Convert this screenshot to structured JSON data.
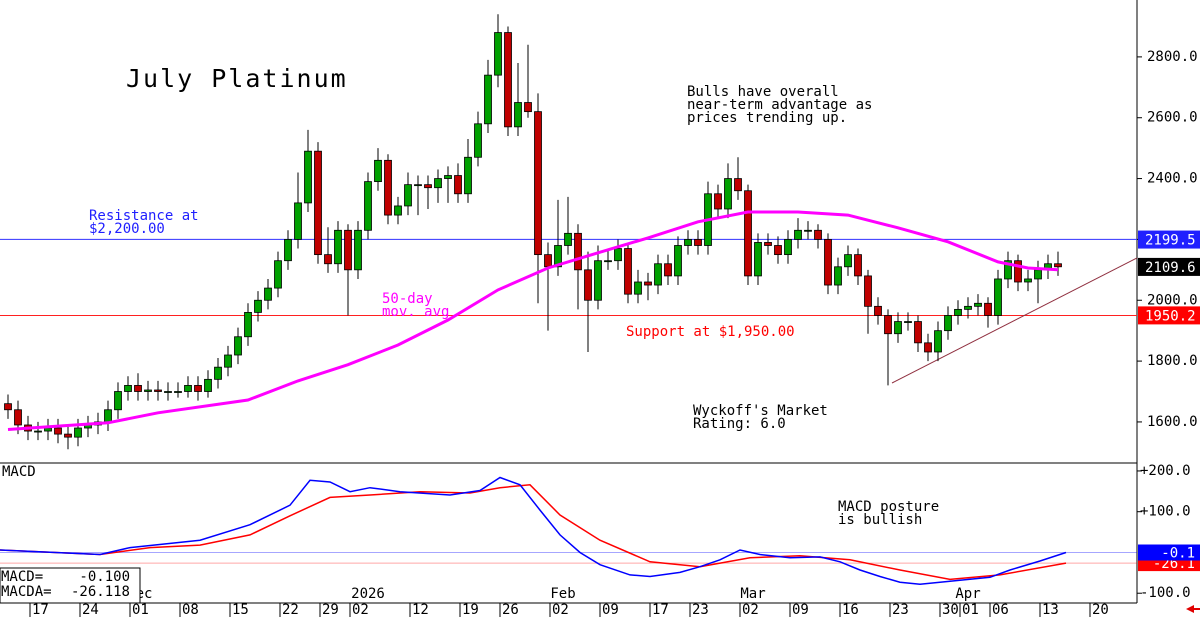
{
  "chart_data": {
    "type": "candlestick",
    "title": "July Platinum",
    "xlim": [
      -0.8,
      112.9
    ],
    "ylim": [
      1465,
      2987
    ],
    "yticks": [
      {
        "value": 1600,
        "label": "1600.0"
      },
      {
        "value": 1800,
        "label": "1800.0"
      },
      {
        "value": 2000,
        "label": "2000.0"
      },
      {
        "value": 2200,
        "label": "2200.0"
      },
      {
        "value": 2400,
        "label": "2400.0"
      },
      {
        "value": 2600,
        "label": "2600.0"
      },
      {
        "value": 2800,
        "label": "2800.0"
      }
    ],
    "xticks": [
      {
        "value": 3,
        "label": "17"
      },
      {
        "value": 8,
        "label": "24"
      },
      {
        "value": 13,
        "label": "01"
      },
      {
        "value": 18,
        "label": "08"
      },
      {
        "value": 23,
        "label": "15"
      },
      {
        "value": 28,
        "label": "22"
      },
      {
        "value": 32,
        "label": "29"
      },
      {
        "value": 35,
        "label": "02"
      },
      {
        "value": 41,
        "label": "12"
      },
      {
        "value": 46,
        "label": "19"
      },
      {
        "value": 50,
        "label": "26"
      },
      {
        "value": 55,
        "label": "02"
      },
      {
        "value": 60,
        "label": "09"
      },
      {
        "value": 65,
        "label": "17"
      },
      {
        "value": 69,
        "label": "23"
      },
      {
        "value": 74,
        "label": "02"
      },
      {
        "value": 79,
        "label": "09"
      },
      {
        "value": 84,
        "label": "16"
      },
      {
        "value": 89,
        "label": "23"
      },
      {
        "value": 94,
        "label": "30"
      },
      {
        "value": 96,
        "label": "01"
      },
      {
        "value": 99,
        "label": "06"
      },
      {
        "value": 104,
        "label": "13"
      },
      {
        "value": 109,
        "label": "20"
      }
    ],
    "month_labels": [
      {
        "value": 13.6,
        "label": "ec"
      },
      {
        "value": 36,
        "label": "2026"
      },
      {
        "value": 55.5,
        "label": "Feb"
      },
      {
        "value": 74.5,
        "label": "Mar"
      },
      {
        "value": 96,
        "label": "Apr"
      }
    ],
    "up_color": "#00a000",
    "down_color": "#c00000",
    "open": [
      1660,
      1640,
      1590,
      1570,
      1570,
      1580,
      1560,
      1550,
      1580,
      1590,
      1600,
      1640,
      1700,
      1720,
      1700,
      1705,
      1700,
      1700,
      1700,
      1720,
      1700,
      1740,
      1780,
      1820,
      1880,
      1960,
      2000,
      2040,
      2130,
      2200,
      2320,
      2490,
      2150,
      2120,
      2230,
      2100,
      2230,
      2390,
      2460,
      2280,
      2310,
      2380,
      2380,
      2370,
      2400,
      2410,
      2350,
      2470,
      2580,
      2740,
      2880,
      2570,
      2650,
      2620,
      2150,
      2110,
      2180,
      2220,
      2100,
      2000,
      2130,
      2130,
      2170,
      2020,
      2060,
      2050,
      2120,
      2080,
      2180,
      2200,
      2180,
      2350,
      2300,
      2400,
      2360,
      2080,
      2190,
      2180,
      2150,
      2200,
      2230,
      2230,
      2200,
      2050,
      2110,
      2150,
      2080,
      1980,
      1950,
      1890,
      1930,
      1930,
      1860,
      1830,
      1900,
      1950,
      1970,
      1980,
      1990,
      1950,
      2070,
      2130,
      2060,
      2070,
      2100,
      2120
    ],
    "high": [
      1690,
      1670,
      1620,
      1600,
      1610,
      1610,
      1590,
      1610,
      1620,
      1630,
      1670,
      1730,
      1750,
      1760,
      1735,
      1735,
      1730,
      1730,
      1750,
      1750,
      1770,
      1810,
      1850,
      1910,
      1990,
      2030,
      2070,
      2160,
      2230,
      2420,
      2560,
      2520,
      2240,
      2260,
      2250,
      2260,
      2420,
      2500,
      2480,
      2340,
      2420,
      2410,
      2410,
      2430,
      2440,
      2450,
      2530,
      2620,
      2790,
      2940,
      2900,
      2780,
      2840,
      2680,
      2190,
      2330,
      2340,
      2250,
      2160,
      2180,
      2170,
      2200,
      2190,
      2100,
      2090,
      2150,
      2150,
      2210,
      2230,
      2230,
      2390,
      2380,
      2450,
      2470,
      2380,
      2220,
      2220,
      2210,
      2230,
      2270,
      2260,
      2250,
      2220,
      2140,
      2180,
      2170,
      2100,
      2010,
      1970,
      1960,
      1960,
      1950,
      1890,
      1930,
      1980,
      2000,
      2010,
      2020,
      2010,
      2100,
      2160,
      2150,
      2100,
      2130,
      2150,
      2160
    ],
    "low": [
      1610,
      1560,
      1540,
      1540,
      1540,
      1530,
      1510,
      1520,
      1550,
      1560,
      1570,
      1610,
      1670,
      1670,
      1670,
      1670,
      1670,
      1680,
      1680,
      1670,
      1680,
      1710,
      1750,
      1790,
      1850,
      1930,
      1970,
      2010,
      2100,
      2170,
      2290,
      2120,
      2090,
      2090,
      1950,
      2070,
      2200,
      2360,
      2250,
      2250,
      2280,
      2280,
      2300,
      2320,
      2320,
      2320,
      2320,
      2440,
      2550,
      2700,
      2540,
      2540,
      2600,
      1990,
      1900,
      2080,
      2150,
      1970,
      1830,
      1970,
      2100,
      2100,
      1990,
      1990,
      2000,
      2020,
      2050,
      2050,
      2150,
      2150,
      2150,
      2270,
      2270,
      2330,
      2050,
      2050,
      2150,
      2120,
      2120,
      2170,
      2200,
      2170,
      2020,
      2020,
      2080,
      2050,
      1890,
      1920,
      1720,
      1860,
      1900,
      1830,
      1800,
      1800,
      1870,
      1920,
      1940,
      1950,
      1910,
      1920,
      2040,
      2030,
      2030,
      1990,
      2070,
      2080
    ],
    "close": [
      1640,
      1590,
      1570,
      1570,
      1580,
      1560,
      1550,
      1580,
      1590,
      1600,
      1640,
      1700,
      1720,
      1700,
      1705,
      1700,
      1700,
      1700,
      1720,
      1700,
      1740,
      1780,
      1820,
      1880,
      1960,
      2000,
      2040,
      2130,
      2200,
      2320,
      2490,
      2150,
      2120,
      2230,
      2100,
      2230,
      2390,
      2460,
      2280,
      2310,
      2380,
      2380,
      2370,
      2400,
      2410,
      2350,
      2470,
      2580,
      2740,
      2880,
      2570,
      2650,
      2620,
      2150,
      2110,
      2180,
      2220,
      2100,
      2000,
      2130,
      2130,
      2170,
      2020,
      2060,
      2050,
      2120,
      2080,
      2180,
      2200,
      2180,
      2350,
      2300,
      2400,
      2360,
      2080,
      2190,
      2180,
      2150,
      2200,
      2230,
      2230,
      2200,
      2050,
      2110,
      2150,
      2080,
      1980,
      1950,
      1890,
      1930,
      1930,
      1860,
      1830,
      1900,
      1950,
      1970,
      1980,
      1990,
      1950,
      2070,
      2130,
      2060,
      2070,
      2100,
      2120,
      2110
    ],
    "moving_average": {
      "color": "#ff00ff",
      "x": [
        0,
        10,
        15,
        24,
        29,
        34,
        39,
        44,
        49,
        54,
        59,
        64,
        69,
        74,
        79,
        84,
        89,
        94,
        99,
        102,
        105
      ],
      "values": [
        1575,
        1597,
        1630,
        1672,
        1735,
        1788,
        1853,
        1935,
        2034,
        2106,
        2156,
        2205,
        2258,
        2290,
        2290,
        2280,
        2238,
        2192,
        2126,
        2106,
        2100
      ]
    },
    "levels": [
      {
        "value": 2200,
        "color": "#3030ff"
      },
      {
        "value": 1950,
        "color": "#ff2020"
      }
    ],
    "trendline": {
      "x": [
        88.4,
        112.9
      ],
      "values": [
        1728,
        2139
      ]
    },
    "price_labels": [
      {
        "value": 2199.5,
        "color": "#2020ff"
      },
      {
        "value": 2109.6,
        "color": "#000000"
      },
      {
        "value": 1950.2,
        "color": "#ff0000"
      }
    ],
    "annotations": [
      {
        "lines": [
          "Bulls have overall",
          "near-term advantage as",
          "prices trending up."
        ],
        "color": "#000000"
      },
      {
        "lines": [
          "Resistance at",
          "$2,200.00"
        ],
        "color": "#2020ff"
      },
      {
        "lines": [
          "50-day",
          "mov. avg"
        ],
        "color": "#ff00ff"
      },
      {
        "lines": [
          "Support at $1,950.00"
        ],
        "color": "#ff0000"
      },
      {
        "lines": [
          "Wyckoff's Market",
          "Rating: 6.0"
        ],
        "color": "#000000"
      }
    ],
    "macd": {
      "title": "MACD",
      "ylim": [
        -124,
        219.5
      ],
      "yticks": [
        {
          "value": 200,
          "label": "+200.0"
        },
        {
          "value": 100,
          "label": "+100.0"
        },
        {
          "value": -100,
          "label": "-100.0"
        }
      ],
      "annotation": [
        "MACD posture",
        "is bullish"
      ],
      "series": [
        {
          "name": "MACD=",
          "readout": "-0.100",
          "color": "#0000ff",
          "last": -0.1,
          "x": [
            -0.8,
            9.2,
            12.2,
            19.2,
            24.2,
            28.2,
            30.2,
            32.2,
            34.2,
            36.2,
            39.2,
            44.2,
            47.2,
            49.2,
            51.2,
            53.2,
            55.2,
            57.2,
            59.2,
            62.2,
            64.2,
            67.2,
            69.2,
            71.2,
            73.2,
            75.2,
            78.2,
            81.2,
            83.2,
            85.2,
            87.2,
            89.2,
            91.2,
            93.2,
            95.2,
            98.2,
            100.2,
            103.2,
            105.8
          ],
          "values": [
            6,
            -5,
            12,
            30,
            68,
            116,
            177,
            173,
            149,
            159,
            149,
            141,
            152,
            184,
            166,
            104,
            43,
            0,
            -30,
            -55,
            -59,
            -49,
            -35,
            -18,
            6,
            -5,
            -13,
            -11,
            -23,
            -43,
            -59,
            -73,
            -78,
            -73,
            -68,
            -61,
            -43,
            -21,
            -0.1
          ]
        },
        {
          "name": "MACDA=",
          "readout": "-26.118",
          "color": "#ff0000",
          "last": -26.1,
          "x": [
            -0.8,
            9.2,
            14.2,
            19.2,
            24.2,
            28.2,
            32.2,
            36.2,
            41.2,
            46.2,
            49.2,
            52.2,
            55.2,
            59.2,
            64.2,
            69.2,
            74.2,
            79.2,
            84.2,
            89.2,
            94.2,
            99.2,
            105.8
          ],
          "values": [
            6,
            -5,
            12,
            18,
            43,
            90,
            135,
            141,
            149,
            146,
            159,
            166,
            92,
            30,
            -23,
            -35,
            -13,
            -8,
            -18,
            -43,
            -66,
            -55,
            -26.1
          ]
        }
      ]
    }
  }
}
